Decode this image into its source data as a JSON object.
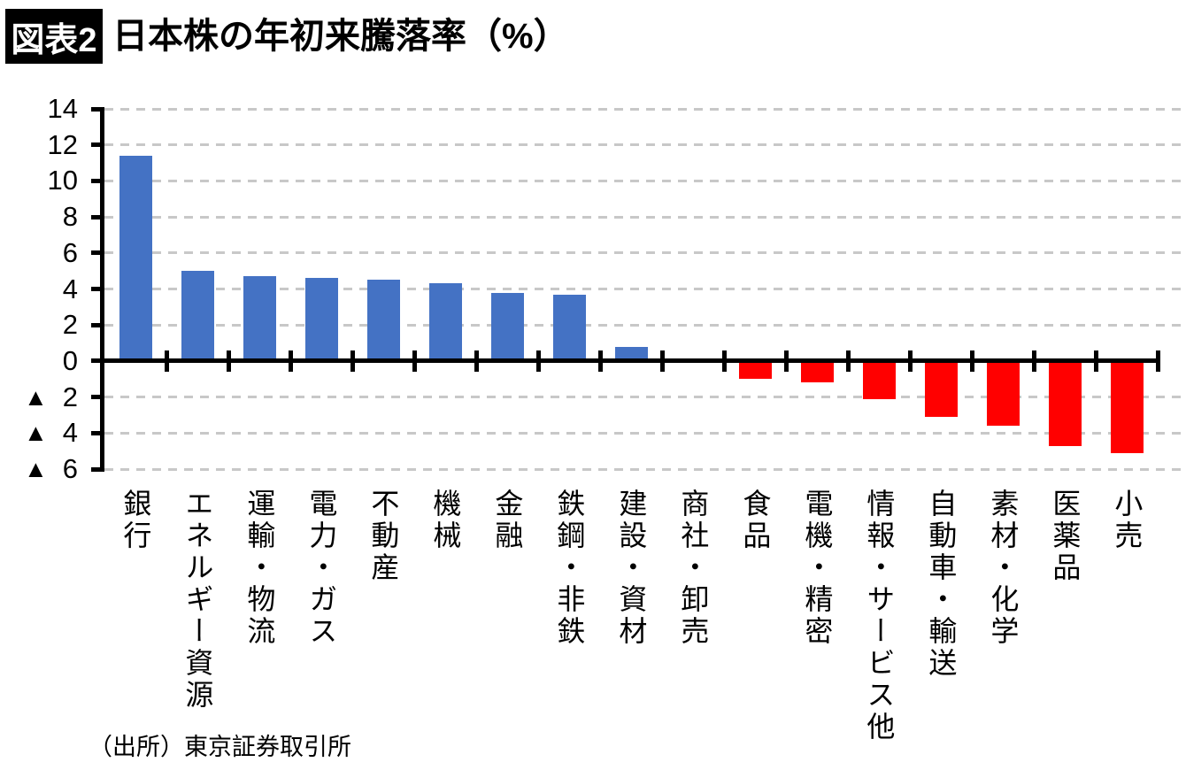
{
  "header": {
    "badge": "図表2",
    "title": "日本株の年初来騰落率（%）"
  },
  "source_note": "（出所）東京証券取引所",
  "chart_data": {
    "type": "bar",
    "title": "日本株の年初来騰落率（%）",
    "categories": [
      "銀行",
      "エネルギー資源",
      "運輸・物流",
      "電力・ガス",
      "不動産",
      "機械",
      "金融",
      "鉄鋼・非鉄",
      "建設・資材",
      "商社・卸売",
      "食品",
      "電機・精密",
      "情報・サービス他",
      "自動車・輸送",
      "素材・化学",
      "医薬品",
      "小売"
    ],
    "values": [
      11.4,
      5.0,
      4.7,
      4.6,
      4.5,
      4.3,
      3.8,
      3.7,
      0.8,
      0.0,
      -1.0,
      -1.2,
      -2.1,
      -3.1,
      -3.6,
      -4.7,
      -5.1
    ],
    "ylim": [
      -6,
      14
    ],
    "yticks": [
      14,
      12,
      10,
      8,
      6,
      4,
      2,
      0,
      -2,
      -4,
      -6
    ],
    "gridlines": [
      14,
      12,
      10,
      8,
      6,
      4,
      2,
      -2,
      -4,
      -6
    ],
    "negative_prefix": "▲",
    "positive_color": "#4472C4",
    "negative_color": "#FF0000",
    "grid": true,
    "legend": "none",
    "source": "（出所）東京証券取引所"
  }
}
